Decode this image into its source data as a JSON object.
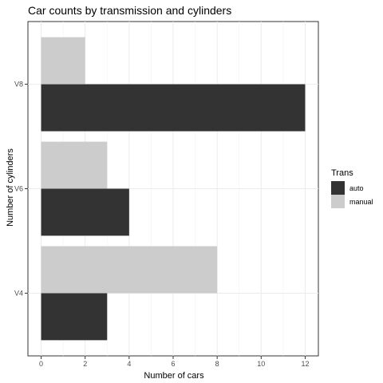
{
  "chart_data": {
    "type": "bar",
    "orientation": "horizontal",
    "title": "Car counts by transmission and cylinders",
    "xlabel": "Number of cars",
    "ylabel": "Number of cylinders",
    "categories": [
      "V4",
      "V6",
      "V8"
    ],
    "series": [
      {
        "name": "auto",
        "color": "#333333",
        "values": [
          3,
          4,
          12
        ]
      },
      {
        "name": "manual",
        "color": "#cccccc",
        "values": [
          8,
          3,
          2
        ]
      }
    ],
    "x_ticks": [
      "0",
      "2",
      "4",
      "6",
      "8",
      "10",
      "12"
    ],
    "xlim": [
      -0.6,
      12.6
    ],
    "grid": true,
    "legend": {
      "title": "Trans",
      "position": "right"
    }
  }
}
